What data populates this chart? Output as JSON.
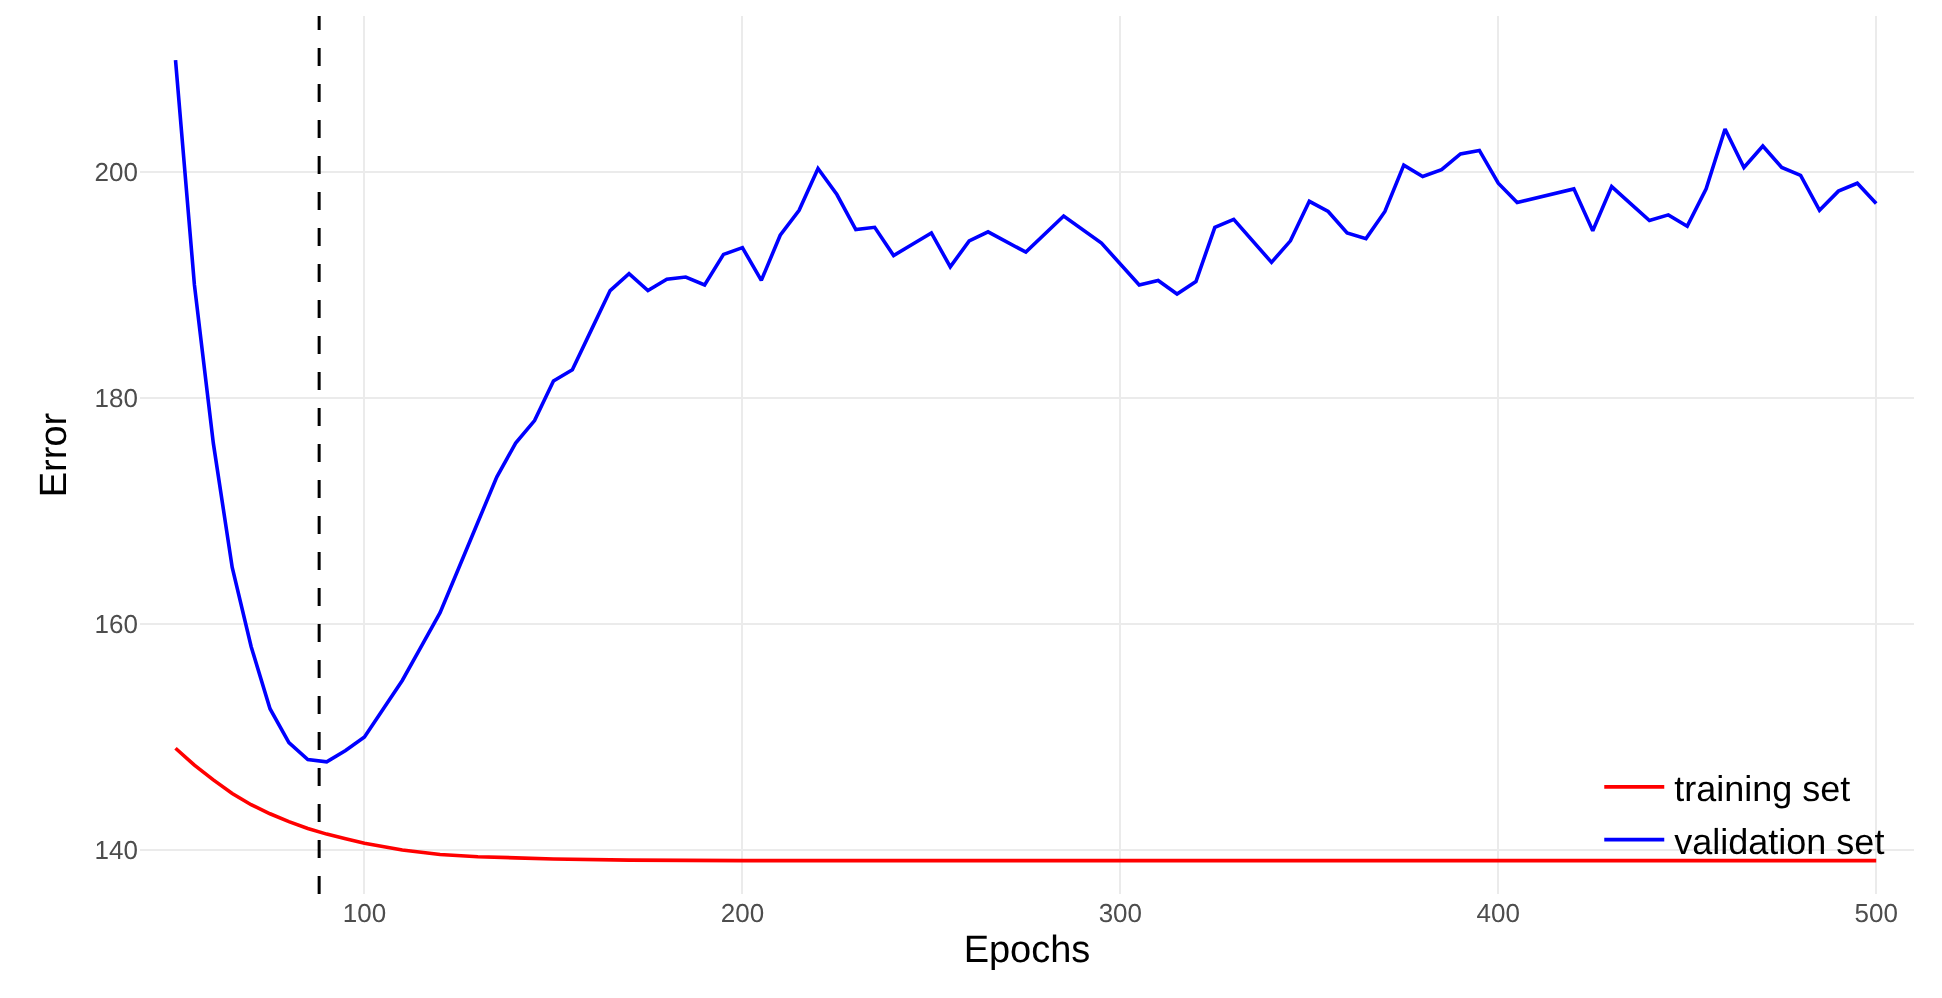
{
  "chart_data": {
    "type": "line",
    "xlabel": "Epochs",
    "ylabel": "Error",
    "xlim": [
      40.6,
      510
    ],
    "ylim": [
      136.1,
      213.8
    ],
    "xticks": [
      100,
      200,
      300,
      400,
      500
    ],
    "yticks": [
      140,
      160,
      180,
      200
    ],
    "grid": true,
    "legend": "bottom right",
    "marker": "none",
    "line_style": "solid",
    "ref_lines": [
      {
        "axis": "x",
        "value": 88,
        "line_style": "dashed",
        "color": "#000000"
      }
    ],
    "series": [
      {
        "name": "training set",
        "color": "#ff0000",
        "x": [
          50,
          55,
          60,
          65,
          70,
          75,
          80,
          85,
          90,
          95,
          100,
          110,
          120,
          130,
          140,
          150,
          170,
          200,
          300,
          400,
          500
        ],
        "values": [
          149,
          147.5,
          146.2,
          145,
          144,
          143.2,
          142.5,
          141.9,
          141.4,
          141,
          140.6,
          140,
          139.6,
          139.4,
          139.3,
          139.2,
          139.1,
          139.05,
          139.05,
          139.05,
          139.05
        ]
      },
      {
        "name": "validation set",
        "color": "#0000ff",
        "x": [
          50,
          55,
          60,
          65,
          70,
          75,
          80,
          85,
          90,
          95,
          100,
          105,
          110,
          115,
          120,
          125,
          130,
          135,
          140,
          145,
          150,
          155,
          160,
          165,
          170,
          175,
          180,
          185,
          190,
          195,
          200,
          205,
          210,
          215,
          220,
          225,
          230,
          235,
          240,
          245,
          250,
          255,
          260,
          265,
          275,
          285,
          295,
          305,
          310,
          315,
          320,
          325,
          330,
          340,
          345,
          350,
          355,
          360,
          365,
          370,
          375,
          380,
          385,
          390,
          395,
          400,
          405,
          420,
          425,
          430,
          435,
          440,
          445,
          450,
          455,
          460,
          465,
          470,
          475,
          480,
          485,
          490,
          495,
          500
        ],
        "values": [
          209.9,
          190,
          176,
          165,
          158,
          152.5,
          149.5,
          148,
          147.8,
          148.8,
          150,
          152.5,
          155,
          158,
          161,
          165,
          169,
          173,
          176,
          178,
          181.5,
          182.5,
          186,
          189.5,
          191,
          189.5,
          190.5,
          190.7,
          190,
          192.7,
          193.3,
          190.4,
          194.4,
          196.6,
          200.3,
          198,
          194.9,
          195.1,
          192.6,
          193.6,
          194.6,
          191.6,
          193.9,
          194.7,
          192.9,
          196.1,
          193.7,
          190,
          190.4,
          189.2,
          190.3,
          195.1,
          195.8,
          192,
          193.9,
          197.4,
          196.5,
          194.6,
          194.1,
          196.5,
          200.6,
          199.6,
          200.2,
          201.6,
          201.9,
          199,
          197.3,
          198.5,
          194.8,
          198.7,
          197.2,
          195.7,
          196.2,
          195.2,
          198.5,
          203.8,
          200.4,
          202.3,
          200.4,
          199.7,
          196.6,
          198.3,
          199,
          197.2
        ]
      }
    ]
  }
}
